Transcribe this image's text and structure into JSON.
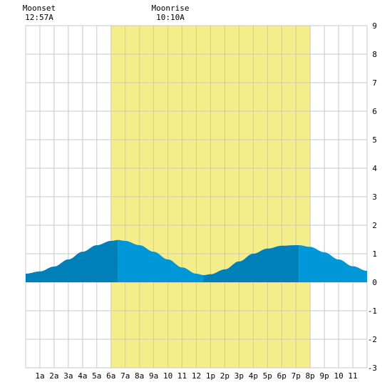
{
  "chart_data": {
    "type": "area",
    "x_ticks": [
      "1a",
      "2a",
      "3a",
      "4a",
      "5a",
      "6a",
      "7a",
      "8a",
      "9a",
      "10",
      "11",
      "12",
      "1p",
      "2p",
      "3p",
      "4p",
      "5p",
      "6p",
      "7p",
      "8p",
      "9p",
      "10",
      "11"
    ],
    "ylim": [
      -3,
      9
    ],
    "y_ticks": [
      9,
      8,
      7,
      6,
      5,
      4,
      3,
      2,
      1,
      0,
      -1,
      -2,
      -3
    ],
    "xlim_hours": [
      0,
      24
    ],
    "grid": true,
    "daylight": {
      "start_hour": 6,
      "end_hour": 20
    },
    "annotations": [
      {
        "title": "Moonset",
        "time": "12:57A",
        "hour": 0.95
      },
      {
        "title": "Moonrise",
        "time": "10:10A",
        "hour": 10.17
      }
    ],
    "series": [
      {
        "x": [
          0,
          1,
          2,
          3,
          4,
          5,
          6,
          6.5,
          7,
          8,
          9,
          10,
          11,
          12,
          12.5,
          13,
          14,
          15,
          16,
          17,
          18,
          19,
          19.2,
          20,
          21,
          22,
          23,
          24
        ],
        "values": [
          0.3,
          0.38,
          0.55,
          0.8,
          1.07,
          1.3,
          1.45,
          1.48,
          1.45,
          1.3,
          1.07,
          0.8,
          0.52,
          0.3,
          0.25,
          0.28,
          0.45,
          0.73,
          1.0,
          1.18,
          1.28,
          1.3,
          1.3,
          1.24,
          1.05,
          0.8,
          0.56,
          0.4
        ]
      }
    ],
    "colors": {
      "daylight": "#f5ec8a",
      "grid": "#c8c8c8",
      "tide_rising": "#0080b8",
      "tide_falling": "#0097d8"
    },
    "tide_segments": [
      {
        "from": 0,
        "to": 6.5,
        "phase": "rising"
      },
      {
        "from": 6.5,
        "to": 12.5,
        "phase": "falling"
      },
      {
        "from": 12.5,
        "to": 19.2,
        "phase": "rising"
      },
      {
        "from": 19.2,
        "to": 24,
        "phase": "falling"
      }
    ]
  }
}
